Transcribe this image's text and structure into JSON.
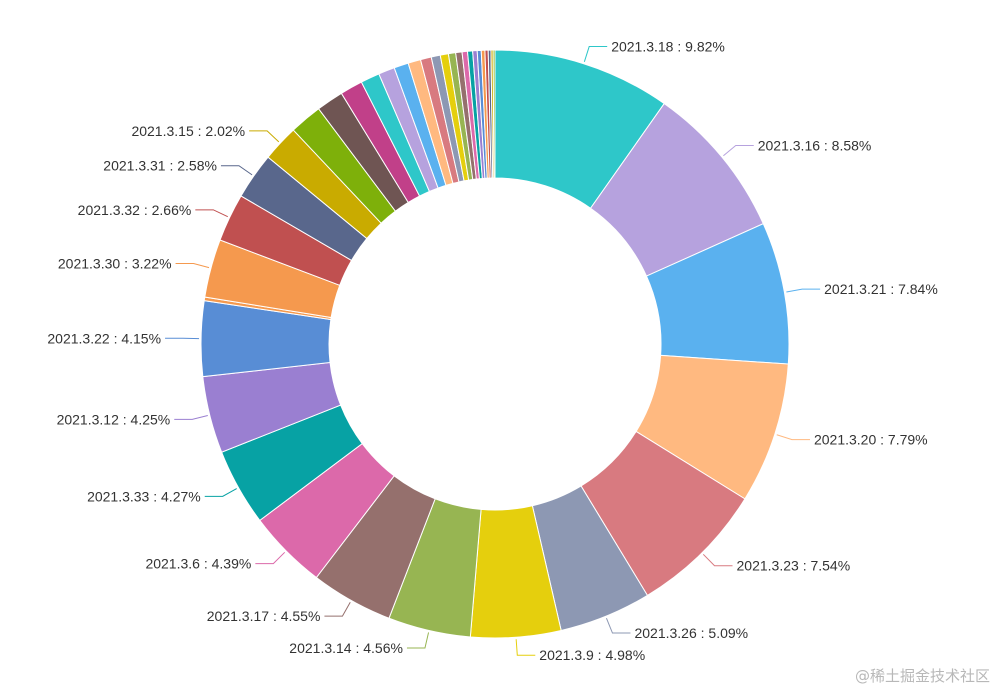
{
  "chart_data": {
    "type": "pie",
    "variant": "donut",
    "series": [
      {
        "name": "2021.3.18",
        "value": 9.82,
        "color": "#2ec7c9"
      },
      {
        "name": "2021.3.16",
        "value": 8.58,
        "color": "#b6a2de"
      },
      {
        "name": "2021.3.21",
        "value": 7.84,
        "color": "#5ab1ef"
      },
      {
        "name": "2021.3.20",
        "value": 7.79,
        "color": "#ffb980"
      },
      {
        "name": "2021.3.23",
        "value": 7.54,
        "color": "#d87a80"
      },
      {
        "name": "2021.3.26",
        "value": 5.09,
        "color": "#8d98b3"
      },
      {
        "name": "2021.3.9",
        "value": 4.98,
        "color": "#e5cf0d"
      },
      {
        "name": "2021.3.14",
        "value": 4.56,
        "color": "#97b552"
      },
      {
        "name": "2021.3.17",
        "value": 4.55,
        "color": "#95706d"
      },
      {
        "name": "2021.3.6",
        "value": 4.39,
        "color": "#dc69aa"
      },
      {
        "name": "2021.3.33",
        "value": 4.27,
        "color": "#07a2a4"
      },
      {
        "name": "2021.3.12",
        "value": 4.25,
        "color": "#9a7fd1"
      },
      {
        "name": "2021.3.22",
        "value": 4.15,
        "color": "#588dd5"
      },
      {
        "name": "",
        "value": 0.2,
        "color": "#f5994e"
      },
      {
        "name": "2021.3.30",
        "value": 3.22,
        "color": "#f5994e"
      },
      {
        "name": "2021.3.32",
        "value": 2.66,
        "color": "#c05050"
      },
      {
        "name": "2021.3.31",
        "value": 2.58,
        "color": "#59678c"
      },
      {
        "name": "2021.3.15",
        "value": 2.02,
        "color": "#c9ab00"
      },
      {
        "name": "",
        "value": 1.8,
        "color": "#7eb00a"
      },
      {
        "name": "",
        "value": 1.5,
        "color": "#6f5553"
      },
      {
        "name": "",
        "value": 1.25,
        "color": "#c14089"
      },
      {
        "name": "",
        "value": 1.05,
        "color": "#2ec7c9"
      },
      {
        "name": "",
        "value": 0.9,
        "color": "#b6a2de"
      },
      {
        "name": "",
        "value": 0.8,
        "color": "#5ab1ef"
      },
      {
        "name": "",
        "value": 0.7,
        "color": "#ffb980"
      },
      {
        "name": "",
        "value": 0.6,
        "color": "#d87a80"
      },
      {
        "name": "",
        "value": 0.5,
        "color": "#8d98b3"
      },
      {
        "name": "",
        "value": 0.45,
        "color": "#e5cf0d"
      },
      {
        "name": "",
        "value": 0.4,
        "color": "#97b552"
      },
      {
        "name": "",
        "value": 0.35,
        "color": "#95706d"
      },
      {
        "name": "",
        "value": 0.3,
        "color": "#dc69aa"
      },
      {
        "name": "",
        "value": 0.28,
        "color": "#07a2a4"
      },
      {
        "name": "",
        "value": 0.25,
        "color": "#9a7fd1"
      },
      {
        "name": "",
        "value": 0.22,
        "color": "#588dd5"
      },
      {
        "name": "",
        "value": 0.2,
        "color": "#f5994e"
      },
      {
        "name": "",
        "value": 0.18,
        "color": "#c05050"
      },
      {
        "name": "",
        "value": 0.15,
        "color": "#59678c"
      },
      {
        "name": "",
        "value": 0.12,
        "color": "#c9ab00"
      },
      {
        "name": "",
        "value": 0.1,
        "color": "#7eb00a"
      }
    ]
  },
  "watermark": "@稀土掘金技术社区"
}
